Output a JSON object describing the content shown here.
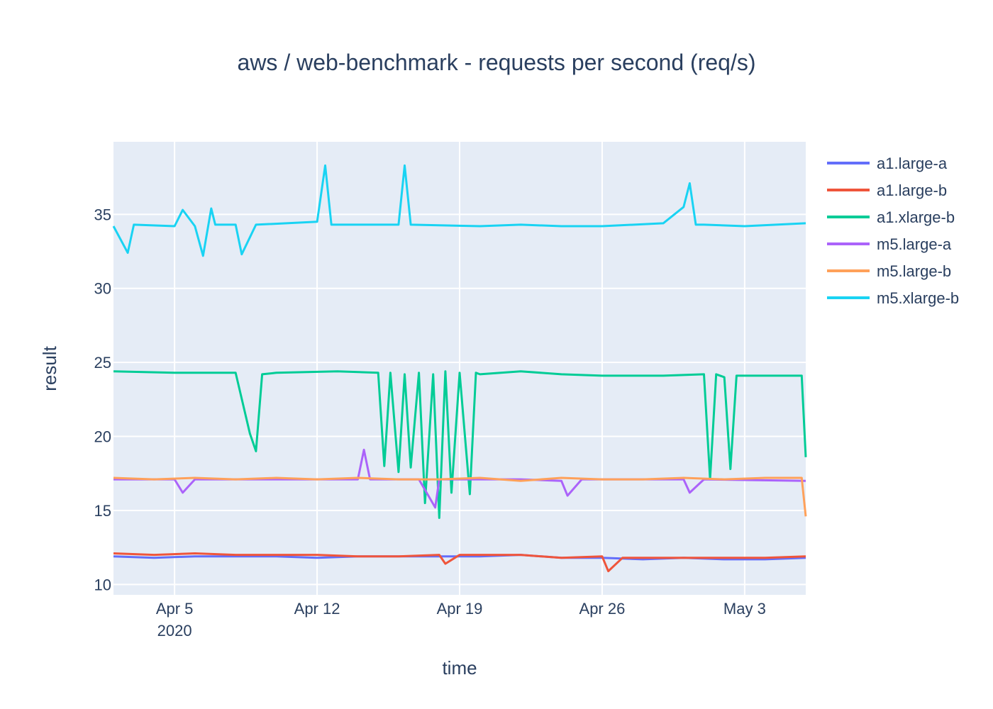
{
  "chart_data": {
    "type": "line",
    "title": "aws / web-benchmark - requests per second (req/s)",
    "xlabel": "time",
    "ylabel": "result",
    "x_range": [
      "2020-04-02",
      "2020-05-06"
    ],
    "ylim": [
      9.3,
      39.9
    ],
    "x_ticks": [
      {
        "date": "2020-04-05",
        "label": "Apr 5",
        "sublabel": "2020"
      },
      {
        "date": "2020-04-12",
        "label": "Apr 12",
        "sublabel": ""
      },
      {
        "date": "2020-04-19",
        "label": "Apr 19",
        "sublabel": ""
      },
      {
        "date": "2020-04-26",
        "label": "Apr 26",
        "sublabel": ""
      },
      {
        "date": "2020-05-03",
        "label": "May 3",
        "sublabel": ""
      }
    ],
    "y_ticks": [
      10,
      15,
      20,
      25,
      30,
      35
    ],
    "grid": true,
    "legend_position": "right",
    "background_color": "#e5ecf6",
    "series": [
      {
        "name": "a1.large-a",
        "color": "#636efa",
        "x": [
          "2020-04-02",
          "2020-04-04",
          "2020-04-06",
          "2020-04-08",
          "2020-04-10",
          "2020-04-12",
          "2020-04-14",
          "2020-04-16",
          "2020-04-18",
          "2020-04-20",
          "2020-04-22",
          "2020-04-24",
          "2020-04-26",
          "2020-04-28",
          "2020-04-30",
          "2020-05-02",
          "2020-05-04",
          "2020-05-06"
        ],
        "y": [
          11.9,
          11.8,
          11.9,
          11.9,
          11.9,
          11.8,
          11.9,
          11.9,
          11.9,
          11.9,
          12.0,
          11.8,
          11.8,
          11.7,
          11.8,
          11.7,
          11.7,
          11.8
        ]
      },
      {
        "name": "a1.large-b",
        "color": "#ef553b",
        "x": [
          "2020-04-02",
          "2020-04-04",
          "2020-04-06",
          "2020-04-08",
          "2020-04-10",
          "2020-04-12",
          "2020-04-14",
          "2020-04-16",
          "2020-04-18",
          "2020-04-18.3",
          "2020-04-19",
          "2020-04-22",
          "2020-04-24",
          "2020-04-26",
          "2020-04-26.3",
          "2020-04-27",
          "2020-04-30",
          "2020-05-02",
          "2020-05-04",
          "2020-05-06"
        ],
        "y": [
          12.1,
          12.0,
          12.1,
          12.0,
          12.0,
          12.0,
          11.9,
          11.9,
          12.0,
          11.4,
          12.0,
          12.0,
          11.8,
          11.9,
          10.9,
          11.8,
          11.8,
          11.8,
          11.8,
          11.9
        ]
      },
      {
        "name": "a1.xlarge-b",
        "color": "#00cc96",
        "x": [
          "2020-04-02",
          "2020-04-05",
          "2020-04-08",
          "2020-04-08.7",
          "2020-04-09",
          "2020-04-09.3",
          "2020-04-10",
          "2020-04-13",
          "2020-04-15",
          "2020-04-15.3",
          "2020-04-15.6",
          "2020-04-16",
          "2020-04-16.3",
          "2020-04-16.6",
          "2020-04-17",
          "2020-04-17.3",
          "2020-04-17.7",
          "2020-04-18",
          "2020-04-18.3",
          "2020-04-18.6",
          "2020-04-19",
          "2020-04-19.5",
          "2020-04-19.8",
          "2020-04-20",
          "2020-04-22",
          "2020-04-24",
          "2020-04-26",
          "2020-04-29",
          "2020-05-01",
          "2020-05-01.3",
          "2020-05-01.6",
          "2020-05-02",
          "2020-05-02.3",
          "2020-05-02.6",
          "2020-05-03",
          "2020-05-05.8",
          "2020-05-06"
        ],
        "y": [
          24.4,
          24.3,
          24.3,
          20.2,
          19.0,
          24.2,
          24.3,
          24.4,
          24.3,
          18.0,
          24.3,
          17.6,
          24.2,
          17.9,
          24.3,
          15.5,
          24.2,
          14.5,
          24.4,
          16.2,
          24.3,
          16.1,
          24.3,
          24.2,
          24.4,
          24.2,
          24.1,
          24.1,
          24.2,
          17.1,
          24.2,
          24.0,
          17.8,
          24.1,
          24.1,
          24.1,
          18.6
        ]
      },
      {
        "name": "m5.large-a",
        "color": "#ab63fa",
        "x": [
          "2020-04-02",
          "2020-04-05",
          "2020-04-05.4",
          "2020-04-06",
          "2020-04-10",
          "2020-04-14",
          "2020-04-14.3",
          "2020-04-14.6",
          "2020-04-17",
          "2020-04-17.8",
          "2020-04-18",
          "2020-04-22",
          "2020-04-24",
          "2020-04-24.3",
          "2020-04-25",
          "2020-04-30",
          "2020-04-30.3",
          "2020-05-01",
          "2020-05-06"
        ],
        "y": [
          17.1,
          17.1,
          16.2,
          17.1,
          17.1,
          17.1,
          19.1,
          17.1,
          17.1,
          15.2,
          17.1,
          17.1,
          17.0,
          16.0,
          17.1,
          17.1,
          16.2,
          17.1,
          17.0
        ]
      },
      {
        "name": "m5.large-b",
        "color": "#ffa15a",
        "x": [
          "2020-04-02",
          "2020-04-04",
          "2020-04-06",
          "2020-04-08",
          "2020-04-10",
          "2020-04-12",
          "2020-04-14",
          "2020-04-16",
          "2020-04-18",
          "2020-04-20",
          "2020-04-22",
          "2020-04-24",
          "2020-04-26",
          "2020-04-28",
          "2020-04-30",
          "2020-05-02",
          "2020-05-04",
          "2020-05-05.8",
          "2020-05-06"
        ],
        "y": [
          17.2,
          17.1,
          17.2,
          17.1,
          17.2,
          17.1,
          17.2,
          17.1,
          17.1,
          17.2,
          17.0,
          17.2,
          17.1,
          17.1,
          17.2,
          17.1,
          17.2,
          17.2,
          14.6
        ]
      },
      {
        "name": "m5.xlarge-b",
        "color": "#19d3f3",
        "x": [
          "2020-04-02",
          "2020-04-02.7",
          "2020-04-03",
          "2020-04-05",
          "2020-04-05.4",
          "2020-04-06",
          "2020-04-06.4",
          "2020-04-06.8",
          "2020-04-07",
          "2020-04-08",
          "2020-04-08.3",
          "2020-04-09",
          "2020-04-12",
          "2020-04-12.4",
          "2020-04-12.7",
          "2020-04-13",
          "2020-04-16",
          "2020-04-16.3",
          "2020-04-16.6",
          "2020-04-20",
          "2020-04-22",
          "2020-04-24",
          "2020-04-26",
          "2020-04-29",
          "2020-04-30",
          "2020-04-30.3",
          "2020-04-30.6",
          "2020-05-01",
          "2020-05-03",
          "2020-05-06"
        ],
        "y": [
          34.2,
          32.4,
          34.3,
          34.2,
          35.3,
          34.2,
          32.2,
          35.4,
          34.3,
          34.3,
          32.3,
          34.3,
          34.5,
          38.3,
          34.3,
          34.3,
          34.3,
          38.3,
          34.3,
          34.2,
          34.3,
          34.2,
          34.2,
          34.4,
          35.5,
          37.1,
          34.3,
          34.3,
          34.2,
          34.4
        ]
      }
    ]
  }
}
